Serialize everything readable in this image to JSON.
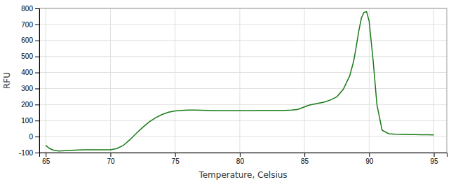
{
  "chart_data": {
    "type": "line",
    "xlabel": "Temperature, Celsius",
    "ylabel": "RFU",
    "x": [
      65.0,
      65.3,
      65.6,
      66.0,
      66.5,
      67.0,
      67.5,
      68.0,
      68.5,
      69.0,
      69.5,
      70.0,
      70.5,
      71.0,
      71.5,
      72.0,
      72.5,
      73.0,
      73.5,
      74.0,
      74.5,
      75.0,
      75.5,
      76.0,
      76.5,
      77.0,
      77.5,
      78.0,
      78.5,
      79.0,
      79.5,
      80.0,
      80.5,
      81.0,
      81.5,
      82.0,
      82.5,
      83.0,
      83.5,
      84.0,
      84.5,
      85.0,
      85.3,
      85.6,
      86.0,
      86.5,
      87.0,
      87.5,
      88.0,
      88.5,
      88.8,
      89.0,
      89.2,
      89.4,
      89.6,
      89.8,
      90.0,
      90.3,
      90.6,
      91.0,
      91.5,
      92.0,
      92.5,
      93.0,
      93.5,
      94.0,
      94.5,
      95.0
    ],
    "values": [
      -55,
      -75,
      -85,
      -90,
      -88,
      -86,
      -84,
      -83,
      -83,
      -83,
      -83,
      -82,
      -75,
      -55,
      -20,
      20,
      58,
      92,
      118,
      138,
      152,
      160,
      163,
      165,
      165,
      164,
      163,
      162,
      162,
      162,
      162,
      162,
      162,
      162,
      163,
      163,
      163,
      163,
      163,
      165,
      170,
      185,
      195,
      200,
      207,
      215,
      228,
      248,
      295,
      380,
      470,
      560,
      660,
      740,
      775,
      780,
      720,
      480,
      200,
      40,
      18,
      15,
      14,
      13,
      12,
      11,
      11,
      10
    ],
    "color": "#1a7a1a",
    "xlim": [
      64.5,
      96
    ],
    "ylim": [
      -100,
      800
    ],
    "xticks": [
      65,
      70,
      75,
      80,
      85,
      90,
      95
    ],
    "yticks": [
      -100,
      0,
      100,
      200,
      300,
      400,
      500,
      600,
      700,
      800
    ],
    "grid": true
  }
}
